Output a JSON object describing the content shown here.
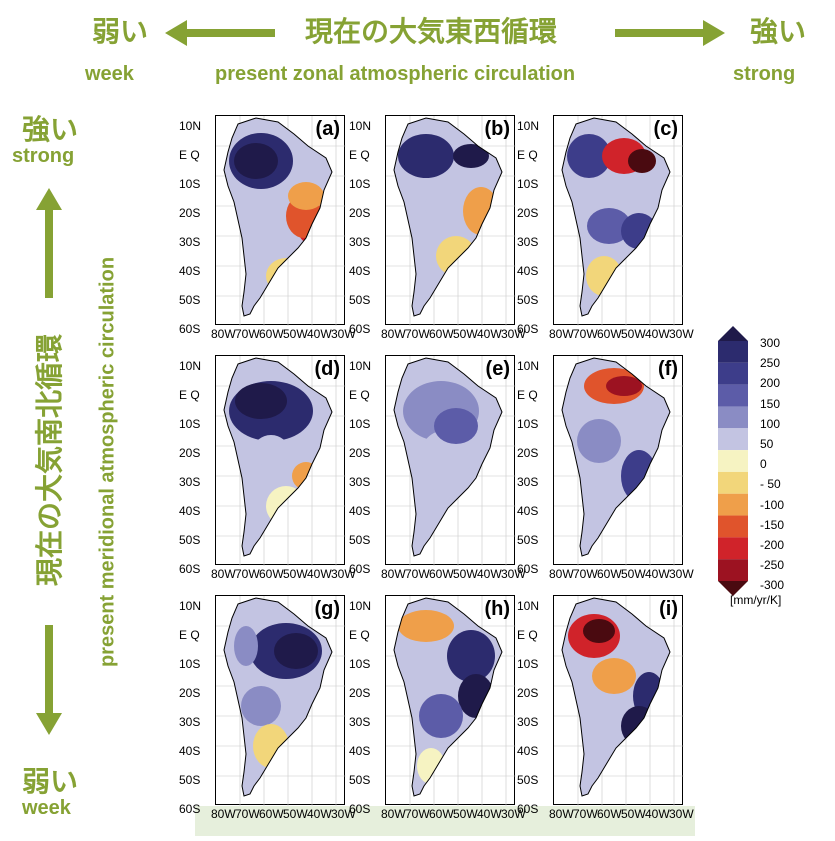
{
  "header": {
    "weak_jp": "弱い",
    "weak_en": "week",
    "title_jp": "現在の大気東西循環",
    "title_en": "present zonal atmospheric circulation",
    "strong_jp": "強い",
    "strong_en": "strong"
  },
  "side": {
    "strong_jp": "強い",
    "strong_en": "strong",
    "title_jp": "現在の大気南北循環",
    "title_en": "present meridional atmospheric circulation",
    "weak_jp": "弱い",
    "weak_en": "week"
  },
  "panels": [
    {
      "label": "(a)"
    },
    {
      "label": "(b)"
    },
    {
      "label": "(c)"
    },
    {
      "label": "(d)"
    },
    {
      "label": "(e)"
    },
    {
      "label": "(f)"
    },
    {
      "label": "(g)"
    },
    {
      "label": "(h)"
    },
    {
      "label": "(i)"
    }
  ],
  "lat_ticks": [
    "10N",
    "E Q",
    "10S",
    "20S",
    "30S",
    "40S",
    "50S",
    "60S"
  ],
  "lon_ticks": [
    "80W",
    "70W",
    "60W",
    "50W",
    "40W",
    "30W"
  ],
  "colorbar": {
    "labels": [
      "300",
      "250",
      "200",
      "150",
      "100",
      "50",
      "0",
      "- 50",
      "-100",
      "-150",
      "-200",
      "-250",
      "-300"
    ],
    "units": "[mm/yr/K]",
    "colors": [
      "#1f1a4a",
      "#2c2b6e",
      "#3d3d8a",
      "#5c5ca8",
      "#8a8cc4",
      "#c3c4e2",
      "#f6f3c2",
      "#f2d67a",
      "#ef9f4a",
      "#e0542c",
      "#d0232a",
      "#9c1221",
      "#4a0a10"
    ]
  }
}
